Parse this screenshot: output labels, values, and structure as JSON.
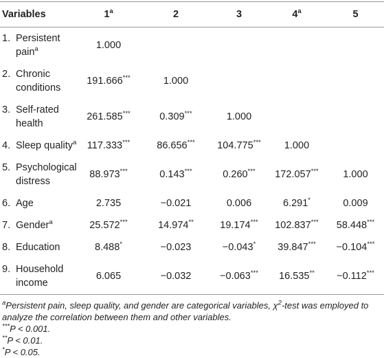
{
  "table": {
    "header": [
      "Variables",
      {
        "text": "1",
        "sup": "a"
      },
      "2",
      "3",
      {
        "text": "4",
        "sup": "a"
      },
      "5"
    ],
    "rows": [
      {
        "num": "1.",
        "label": "Persistent pain",
        "sup": "a",
        "cells": [
          "1.000",
          null,
          null,
          null,
          null
        ]
      },
      {
        "num": "2.",
        "label": "Chronic conditions",
        "cells": [
          {
            "text": "191.666",
            "sup": "***"
          },
          "1.000",
          null,
          null,
          null
        ]
      },
      {
        "num": "3.",
        "label": "Self-rated health",
        "cells": [
          {
            "text": "261.585",
            "sup": "***"
          },
          {
            "text": "0.309",
            "sup": "***"
          },
          "1.000",
          null,
          null
        ]
      },
      {
        "num": "4.",
        "label": "Sleep quality",
        "sup": "a",
        "cells": [
          {
            "text": "117.333",
            "sup": "***"
          },
          {
            "text": "86.656",
            "sup": "***"
          },
          {
            "text": "104.775",
            "sup": "***"
          },
          "1.000",
          null
        ]
      },
      {
        "num": "5.",
        "label": "Psychological distress",
        "cells": [
          {
            "text": "88.973",
            "sup": "***"
          },
          {
            "text": "0.143",
            "sup": "***"
          },
          {
            "text": "0.260",
            "sup": "***"
          },
          {
            "text": "172.057",
            "sup": "***"
          },
          "1.000"
        ]
      },
      {
        "num": "6.",
        "label": "Age",
        "cells": [
          "2.735",
          "−0.021",
          "0.006",
          {
            "text": "6.291",
            "sup": "*"
          },
          "0.009"
        ]
      },
      {
        "num": "7.",
        "label": "Gender",
        "sup": "a",
        "cells": [
          {
            "text": "25.572",
            "sup": "***"
          },
          {
            "text": "14.974",
            "sup": "**"
          },
          {
            "text": "19.174",
            "sup": "***"
          },
          {
            "text": "102.837",
            "sup": "***"
          },
          {
            "text": "58.448",
            "sup": "***"
          }
        ]
      },
      {
        "num": "8.",
        "label": "Education",
        "cells": [
          {
            "text": "8.488",
            "sup": "*"
          },
          "−0.023",
          {
            "text": "−0.043",
            "sup": "*"
          },
          {
            "text": "39.847",
            "sup": "***"
          },
          {
            "text": "−0.104",
            "sup": "***"
          }
        ]
      },
      {
        "num": "9.",
        "label": "Household income",
        "cells": [
          "6.065",
          "−0.032",
          {
            "text": "−0.063",
            "sup": "***"
          },
          {
            "text": "16.535",
            "sup": "**"
          },
          {
            "text": "−0.112",
            "sup": "***"
          }
        ]
      }
    ]
  },
  "footnotes": [
    [
      {
        "sup": "a"
      },
      {
        "text": "Persistent pain, sleep quality, and gender are categorical variables, χ"
      },
      {
        "sup": "2"
      },
      {
        "text": "-test was employed to analyze the correlation between them and other variables."
      }
    ],
    [
      {
        "sup": "***"
      },
      {
        "text": "P < 0.001."
      }
    ],
    [
      {
        "sup": "**"
      },
      {
        "text": "P < 0.01."
      }
    ],
    [
      {
        "sup": "*"
      },
      {
        "text": "P < 0.05."
      }
    ]
  ]
}
